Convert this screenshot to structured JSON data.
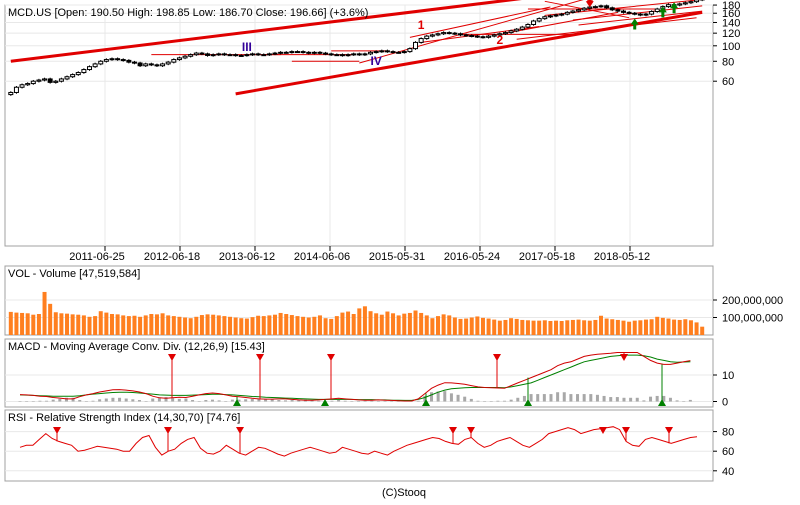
{
  "main": {
    "header": "MCD.US [Open: 190.50  High: 198.85  Low: 186.70  Close: 196.66] (+3.6%)",
    "y_ticks": [
      60,
      80,
      100,
      120,
      140,
      160,
      180
    ],
    "x_ticks": [
      "2011-06-25",
      "2012-06-18",
      "2013-06-12",
      "2014-06-06",
      "2015-05-31",
      "2016-05-24",
      "2017-05-18",
      "2018-05-12"
    ],
    "annotations": [
      "III",
      "IV",
      "1",
      "2",
      "1"
    ]
  },
  "vol": {
    "header": "VOL - Volume [47,519,584]",
    "y_ticks": [
      "100,000,000",
      "200,000,000"
    ]
  },
  "macd": {
    "header": "MACD - Moving Average Conv. Div. (12,26,9) [15.43]",
    "y_ticks": [
      0,
      10
    ]
  },
  "rsi": {
    "header": "RSI - Relative Strength Index (14,30,70) [74.76]",
    "y_ticks": [
      40,
      60,
      80
    ]
  },
  "footer": "(C)Stooq",
  "colors": {
    "trend": "#e00000",
    "volume": "#ff7f1f",
    "macd": "#d00000",
    "signal": "#008000",
    "arrow_up": "#008000",
    "arrow_down": "#e00000",
    "annotation_roman": "#330099",
    "annotation_digit": "#e00000"
  },
  "chart_data": [
    {
      "type": "candlestick",
      "title": "MCD.US [Open: 190.50  High: 198.85  Low: 186.70  Close: 196.66] (+3.6%)",
      "ylim": [
        50,
        200
      ],
      "log_scale": true,
      "close": [
        51,
        55,
        57,
        58,
        60,
        61,
        62,
        59,
        60,
        62,
        64,
        66,
        68,
        71,
        74,
        77,
        80,
        82,
        83,
        82,
        81,
        79,
        78,
        75,
        77,
        76,
        75,
        77,
        79,
        82,
        84,
        86,
        88,
        90,
        89,
        87,
        88,
        89,
        88,
        88,
        87,
        87,
        88,
        89,
        88,
        88,
        89,
        90,
        91,
        91,
        92,
        92,
        91,
        90,
        91,
        90,
        89,
        88,
        88,
        87,
        88,
        89,
        88,
        89,
        91,
        92,
        93,
        92,
        91,
        91,
        92,
        96,
        105,
        111,
        115,
        117,
        119,
        121,
        120,
        119,
        117,
        116,
        115,
        114,
        113,
        115,
        117,
        119,
        121,
        124,
        127,
        131,
        136,
        143,
        148,
        152,
        154,
        156,
        158,
        162,
        165,
        168,
        172,
        175,
        176,
        178,
        173,
        168,
        165,
        162,
        160,
        158,
        156,
        158,
        164,
        170,
        176,
        181,
        180,
        183,
        186,
        189,
        194,
        196.66
      ]
    },
    {
      "type": "bar",
      "title": "VOL - Volume [47,519,584]",
      "ylim": [
        0,
        300000000
      ],
      "values": [
        132,
        128,
        126,
        124,
        116,
        120,
        246,
        178,
        130,
        124,
        122,
        118,
        116,
        112,
        104,
        108,
        136,
        128,
        120,
        118,
        112,
        108,
        110,
        104,
        112,
        120,
        118,
        124,
        112,
        108,
        104,
        100,
        96,
        104,
        114,
        118,
        116,
        112,
        108,
        104,
        100,
        96,
        94,
        102,
        110,
        108,
        112,
        116,
        126,
        120,
        114,
        108,
        104,
        100,
        104,
        112,
        96,
        92,
        108,
        128,
        134,
        120,
        152,
        164,
        136,
        124,
        116,
        134,
        124,
        112,
        122,
        126,
        140,
        126,
        112,
        96,
        108,
        118,
        112,
        100,
        92,
        94,
        100,
        106,
        98,
        94,
        88,
        82,
        86,
        96,
        92,
        86,
        84,
        82,
        82,
        84,
        80,
        82,
        80,
        84,
        86,
        88,
        84,
        82,
        86,
        110,
        94,
        90,
        86,
        82,
        76,
        82,
        84,
        88,
        90,
        104,
        98,
        94,
        88,
        86,
        90,
        84,
        72,
        47.5
      ]
    },
    {
      "type": "line",
      "title": "MACD - Moving Average Conv. Div. (12,26,9) [15.43]",
      "ylim": [
        -2,
        18
      ],
      "series": [
        {
          "name": "MACD",
          "values": [
            2.6,
            2.5,
            2.3,
            2.0,
            1.9,
            1.5,
            1.3,
            1.0,
            1.0,
            1.8,
            2.5,
            3.0,
            3.6,
            4.0,
            4.4,
            4.5,
            4.3,
            4.0,
            3.6,
            3.0,
            2.0,
            1.4,
            1.2,
            1.4,
            1.6,
            1.5,
            2.0,
            2.5,
            3.0,
            3.2,
            3.0,
            2.5,
            2.0,
            1.8,
            1.5,
            1.2,
            1.0,
            0.9,
            0.9,
            1.0,
            1.0,
            0.8,
            0.6,
            0.5,
            0.5,
            0.6,
            0.8,
            1.0,
            1.2,
            1.0,
            0.8,
            0.6,
            0.5,
            0.5,
            0.6,
            0.5,
            0.4,
            0.3,
            0.2,
            0.2,
            1.0,
            3.0,
            5.0,
            6.2,
            7.1,
            7.0,
            6.8,
            6.5,
            6.0,
            5.5,
            5.3,
            5.2,
            5.1,
            5.0,
            6.0,
            7.0,
            8.0,
            9.0,
            10.0,
            11.0,
            12.0,
            13.5,
            14.5,
            15.0,
            16.0,
            17.0,
            17.5,
            17.8,
            18.0,
            18.2,
            18.5,
            18.5,
            18.5,
            18.5,
            17.0,
            15.5,
            14.5,
            14.0,
            14.0,
            14.5,
            15.0,
            15.43
          ]
        },
        {
          "name": "Signal",
          "values": [
            2.5,
            2.4,
            2.3,
            2.2,
            2.1,
            2.0,
            2.0,
            2.0,
            2.0,
            2.2,
            2.5,
            2.8,
            3.0,
            3.2,
            3.4,
            3.5,
            3.5,
            3.4,
            3.2,
            3.0,
            2.8,
            2.5,
            2.4,
            2.3,
            2.3,
            2.3,
            2.4,
            2.5,
            2.6,
            2.7,
            2.7,
            2.6,
            2.5,
            2.3,
            2.1,
            1.9,
            1.8,
            1.6,
            1.5,
            1.4,
            1.3,
            1.2,
            1.1,
            1.0,
            0.9,
            0.8,
            0.8,
            0.8,
            0.8,
            0.8,
            0.8,
            0.7,
            0.7,
            0.7,
            0.6,
            0.6,
            0.5,
            0.5,
            0.4,
            0.4,
            0.8,
            1.5,
            2.5,
            3.5,
            4.3,
            4.8,
            5.0,
            5.2,
            5.3,
            5.3,
            5.3,
            5.3,
            5.3,
            5.2,
            5.5,
            6.0,
            6.5,
            7.0,
            8.0,
            9.0,
            10.0,
            11.0,
            12.0,
            13.0,
            14.0,
            15.0,
            15.5,
            16.0,
            16.5,
            17.0,
            17.3,
            17.5,
            17.5,
            17.5,
            17.3,
            16.8,
            16.0,
            15.5,
            15.0,
            14.8,
            14.9,
            15.0
          ]
        }
      ]
    },
    {
      "type": "line",
      "title": "RSI - Relative Strength Index (14,30,70) [74.76]",
      "ylim": [
        35,
        90
      ],
      "series": [
        {
          "name": "RSI",
          "values": [
            64,
            66,
            66,
            72,
            78,
            73,
            70,
            68,
            66,
            60,
            61,
            63,
            65,
            64,
            63,
            62,
            60,
            60,
            68,
            74,
            76,
            64,
            56,
            60,
            62,
            68,
            72,
            74,
            63,
            58,
            57,
            60,
            66,
            62,
            58,
            56,
            60,
            64,
            63,
            60,
            57,
            55,
            58,
            60,
            62,
            64,
            62,
            60,
            58,
            59,
            64,
            62,
            60,
            58,
            57,
            60,
            58,
            56,
            60,
            63,
            66,
            68,
            70,
            72,
            74,
            73,
            70,
            68,
            67,
            72,
            74,
            68,
            64,
            66,
            70,
            72,
            74,
            70,
            66,
            64,
            68,
            72,
            78,
            80,
            82,
            84,
            82,
            78,
            80,
            82,
            83,
            84,
            85,
            82,
            70,
            66,
            65,
            72,
            74,
            72,
            70,
            68,
            70,
            72,
            74,
            74.76
          ]
        }
      ]
    }
  ]
}
